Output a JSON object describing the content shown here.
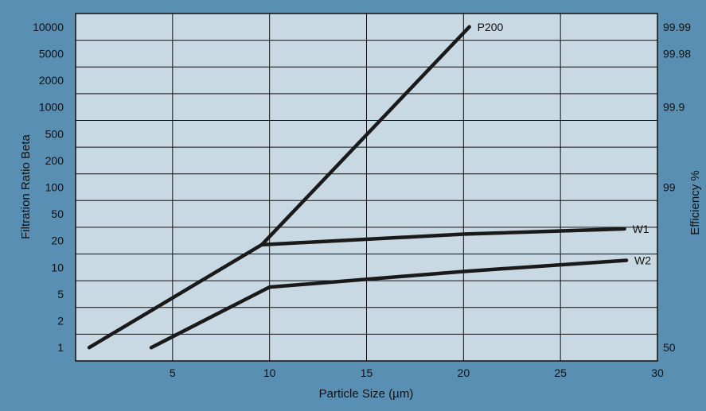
{
  "colors": {
    "frame": "#5a8fb4",
    "plot_background": "#c9d9e4",
    "grid": "#111111",
    "series": "#1a1a1a"
  },
  "chart_data": {
    "type": "line",
    "title": "",
    "xlabel": "Particle Size (µm)",
    "ylabel": "Filtration Ratio Beta",
    "ylabel_right": "Efficiency %",
    "xlim": [
      0,
      30
    ],
    "x_ticks": [
      "5",
      "10",
      "15",
      "20",
      "25",
      "30"
    ],
    "y_scale": "categorical-log",
    "y_ticks": [
      "1",
      "2",
      "5",
      "10",
      "20",
      "50",
      "100",
      "200",
      "500",
      "1000",
      "2000",
      "5000",
      "10000"
    ],
    "right_ticks": [
      {
        "label": "50",
        "at_beta": "1"
      },
      {
        "label": "99",
        "at_beta": "100"
      },
      {
        "label": "99.9",
        "at_beta": "1000"
      },
      {
        "label": "99.98",
        "at_beta": "5000"
      },
      {
        "label": "99.99",
        "at_beta": "10000"
      }
    ],
    "grid": true,
    "series": [
      {
        "name": "P200",
        "points": [
          [
            0.7,
            1
          ],
          [
            9.6,
            18
          ],
          [
            20.3,
            10000
          ]
        ]
      },
      {
        "name": "W1",
        "points": [
          [
            9.6,
            18
          ],
          [
            20,
            25
          ],
          [
            28.3,
            30
          ]
        ]
      },
      {
        "name": "W2",
        "points": [
          [
            3.9,
            1
          ],
          [
            10,
            6
          ],
          [
            20,
            9
          ],
          [
            28.4,
            12
          ]
        ]
      }
    ]
  }
}
